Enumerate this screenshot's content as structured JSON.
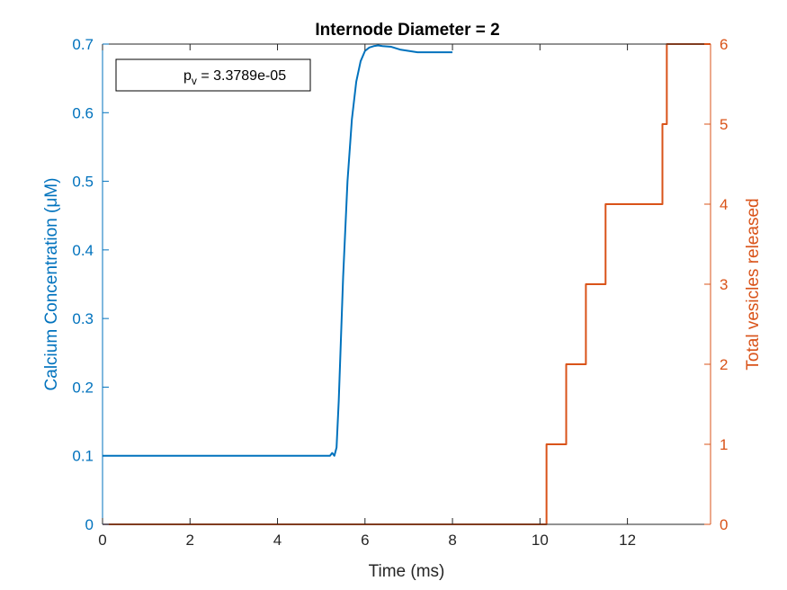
{
  "chart_data": {
    "type": "line",
    "title": "Internode Diameter = 2",
    "xlabel": "Time (ms)",
    "ylabel_left": "Calcium Concentration (μM)",
    "ylabel_right": "Total vesicles released",
    "xlim": [
      0,
      13.9
    ],
    "ylim_left": [
      0,
      0.7
    ],
    "ylim_right": [
      0,
      6
    ],
    "x_ticks": [
      0,
      2,
      4,
      6,
      8,
      10,
      12
    ],
    "y_left_ticks": [
      0,
      0.1,
      0.2,
      0.3,
      0.4,
      0.5,
      0.6,
      0.7
    ],
    "y_right_ticks": [
      0,
      1,
      2,
      3,
      4,
      5,
      6
    ],
    "grid": false,
    "annotation": {
      "prefix": "p",
      "subscript": "v",
      "suffix": " = 3.3789e-05"
    },
    "colors": {
      "left_axis": "#0072BD",
      "right_axis": "#D95319"
    },
    "series": [
      {
        "axis": "left",
        "style": "line",
        "x": [
          0,
          5.2,
          5.25,
          5.3,
          5.35,
          5.4,
          5.5,
          5.6,
          5.7,
          5.8,
          5.9,
          6.0,
          6.1,
          6.2,
          6.3,
          6.4,
          6.6,
          6.8,
          7.0,
          7.2,
          7.5,
          8.0
        ],
        "values": [
          0.1,
          0.1,
          0.104,
          0.1,
          0.112,
          0.18,
          0.36,
          0.5,
          0.59,
          0.645,
          0.675,
          0.69,
          0.695,
          0.697,
          0.698,
          0.697,
          0.696,
          0.692,
          0.69,
          0.688,
          0.688,
          0.688
        ]
      },
      {
        "axis": "right",
        "style": "step",
        "x": [
          0,
          10.15,
          10.6,
          11.05,
          11.5,
          12.8,
          12.9,
          13.9
        ],
        "values": [
          0,
          1,
          2,
          3,
          4,
          5,
          6,
          6
        ]
      }
    ]
  }
}
